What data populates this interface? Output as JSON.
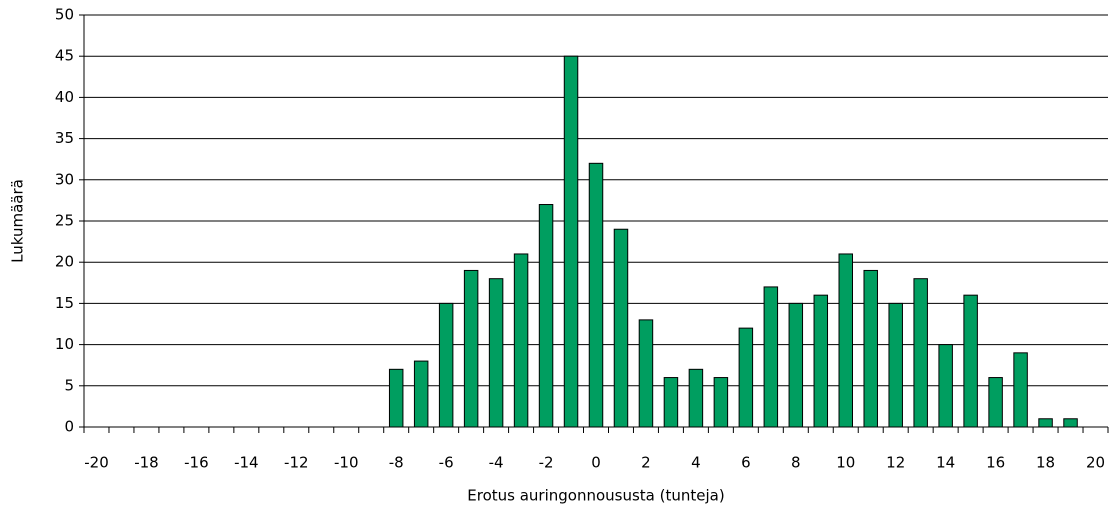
{
  "chart_data": {
    "type": "bar",
    "x_label": "Erotus auringonnoususta (tunteja)",
    "y_label": "Lukumäärä",
    "categories": [
      "-20",
      null,
      "-18",
      null,
      "-16",
      null,
      "-14",
      null,
      "-12",
      null,
      "-10",
      null,
      "-8",
      null,
      "-6",
      null,
      "-4",
      null,
      "-2",
      null,
      "0",
      null,
      "2",
      null,
      "4",
      null,
      "6",
      null,
      "8",
      null,
      "10",
      null,
      "12",
      null,
      "14",
      null,
      "16",
      null,
      "18",
      null,
      "20"
    ],
    "values": [
      0,
      0,
      0,
      0,
      0,
      0,
      0,
      0,
      0,
      0,
      0,
      0,
      7,
      8,
      15,
      19,
      18,
      21,
      27,
      45,
      32,
      24,
      13,
      6,
      7,
      6,
      12,
      17,
      15,
      16,
      21,
      19,
      15,
      18,
      10,
      16,
      6,
      9,
      1,
      1,
      0
    ],
    "color": "#009e60",
    "ylim": [
      0,
      50
    ],
    "yticks": [
      0,
      5,
      10,
      15,
      20,
      25,
      30,
      35,
      40,
      45,
      50
    ],
    "grid": true
  }
}
